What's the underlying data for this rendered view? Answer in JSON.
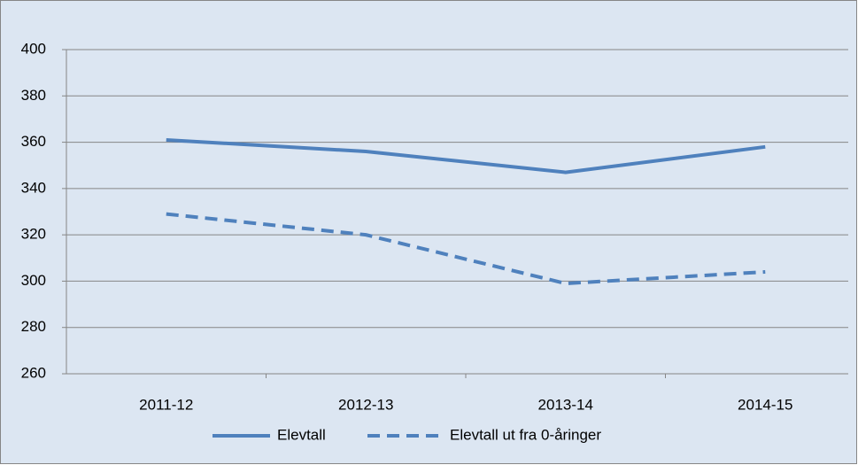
{
  "chart_data": {
    "type": "line",
    "categories": [
      "2011-12",
      "2012-13",
      "2013-14",
      "2014-15"
    ],
    "series": [
      {
        "name": "Elevtall",
        "color": "#4f81bd",
        "line_style": "solid",
        "values": [
          361,
          356,
          347,
          358
        ]
      },
      {
        "name": "Elevtall ut fra 0-åringer",
        "color": "#4f81bd",
        "line_style": "dashed",
        "values": [
          329,
          320,
          299,
          304
        ]
      }
    ],
    "ylim": [
      260,
      400
    ],
    "yticks": [
      260,
      280,
      300,
      320,
      340,
      360,
      380,
      400
    ],
    "grid": true,
    "legend": "bottom"
  }
}
